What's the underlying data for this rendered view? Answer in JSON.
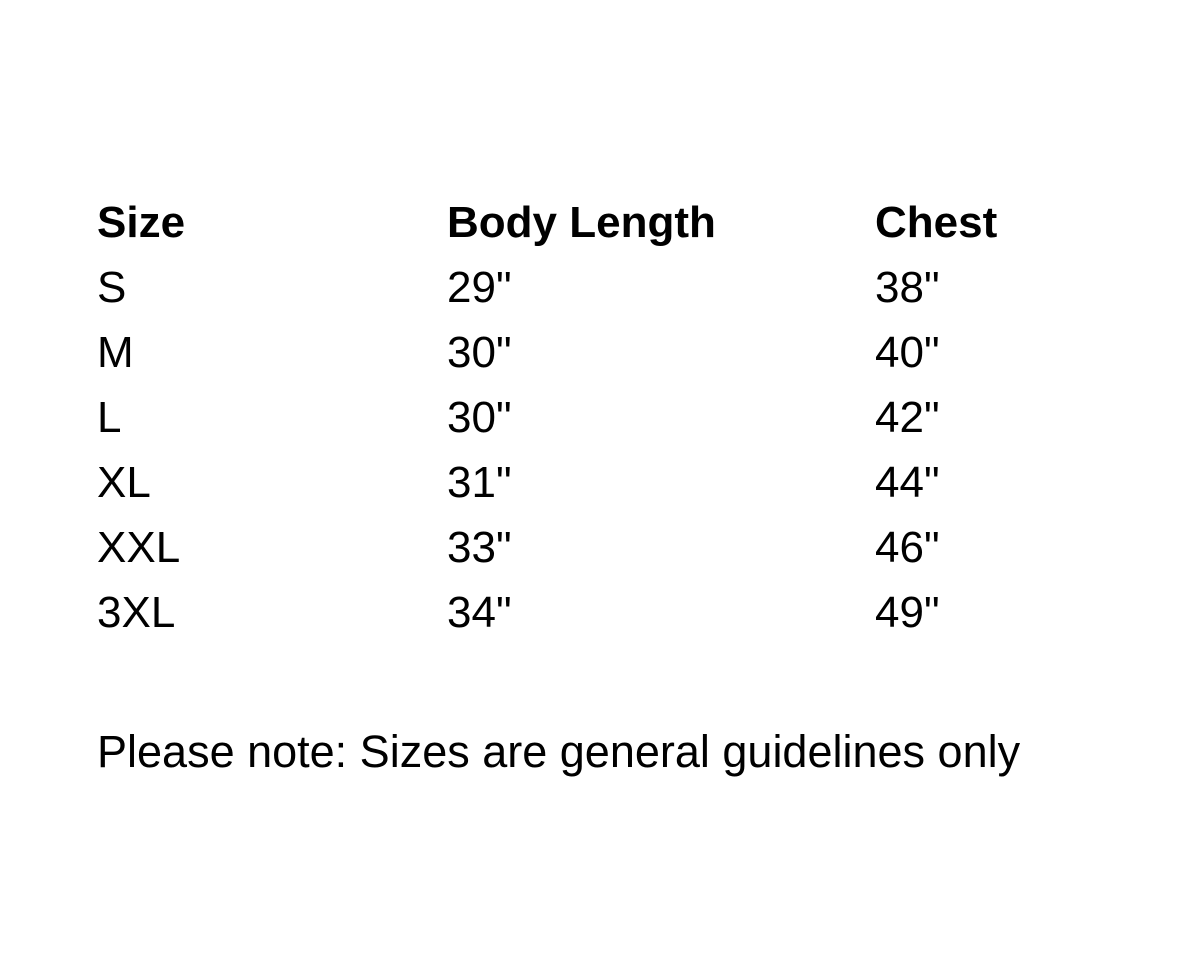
{
  "page": {
    "background_color": "#ffffff",
    "text_color": "#000000"
  },
  "table": {
    "headers": [
      "Size",
      "Body Length",
      "Chest"
    ],
    "rows": [
      {
        "cells": [
          "S",
          "29\"",
          "38\""
        ]
      },
      {
        "cells": [
          "M",
          "30\"",
          "40\""
        ]
      },
      {
        "cells": [
          "L",
          "30\"",
          "42\""
        ]
      },
      {
        "cells": [
          "XL",
          "31\"",
          "44\""
        ]
      },
      {
        "cells": [
          "XXL",
          "33\"",
          "46\""
        ]
      },
      {
        "cells": [
          "3XL",
          "34\"",
          "49\""
        ]
      }
    ]
  },
  "note": {
    "text": "Please note: Sizes are general guidelines only"
  }
}
